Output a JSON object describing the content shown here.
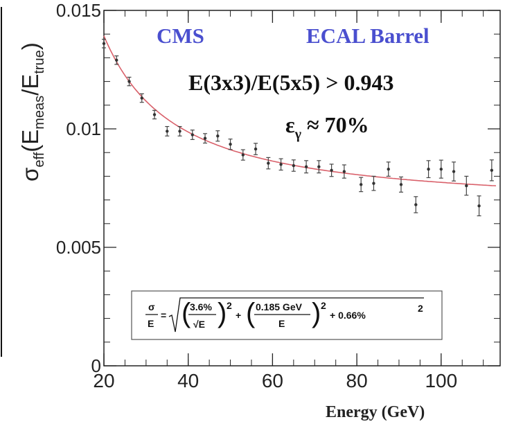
{
  "chart_data": {
    "type": "scatter",
    "annotations": {
      "experiment": "CMS",
      "detector": "ECAL Barrel",
      "cut": "E(3x3)/E(5x5) > 0.943",
      "efficiency_symbol": "ε",
      "efficiency_sub": "γ",
      "efficiency_value": " ≈ 70%"
    },
    "formula": {
      "lhs_num": "σ",
      "lhs_den": "E",
      "eq": "=",
      "stoch_num": "3.6%",
      "stoch_den": "√E",
      "noise_num": "0.185 GeV",
      "noise_den": "E",
      "square": "2",
      "tail": "+ 0.66%",
      "plus": "+"
    },
    "xlabel": "Energy (GeV)",
    "ylabel": {
      "prefix": "σ",
      "sub1": "eff",
      "open": "(E",
      "sub2": "meas",
      "slash": "/E",
      "sub3": "true",
      "close": ")"
    },
    "xlim": [
      20,
      114
    ],
    "ylim": [
      0,
      0.015
    ],
    "x_ticks": [
      {
        "value": 20,
        "label": "20"
      },
      {
        "value": 40,
        "label": "40"
      },
      {
        "value": 60,
        "label": "60"
      },
      {
        "value": 80,
        "label": "80"
      },
      {
        "value": 100,
        "label": "100"
      }
    ],
    "y_ticks": [
      {
        "value": 0,
        "label": "0"
      },
      {
        "value": 0.005,
        "label": "0.005"
      },
      {
        "value": 0.01,
        "label": "0.01"
      },
      {
        "value": 0.015,
        "label": "0.015"
      }
    ],
    "grid": false,
    "series": [
      {
        "x": [
          20.0,
          23.0,
          26.0,
          29.0,
          32.0,
          35.0,
          38.0,
          41.0,
          44.0,
          47.0,
          50.0,
          53.0,
          56.0,
          59.0,
          62.0,
          65.0,
          68.0,
          71.0,
          74.0,
          77.0,
          81.0,
          84.0,
          87.5,
          90.5,
          94.0,
          97.0,
          100.0,
          103.0,
          106.0,
          109.0,
          112.0
        ],
        "y": [
          0.0136,
          0.0129,
          0.012,
          0.0113,
          0.0106,
          0.0099,
          0.0099,
          0.00975,
          0.0096,
          0.0097,
          0.00935,
          0.0089,
          0.00915,
          0.00855,
          0.0085,
          0.00845,
          0.0084,
          0.0084,
          0.00825,
          0.0082,
          0.00765,
          0.0077,
          0.0083,
          0.00765,
          0.0068,
          0.0083,
          0.0083,
          0.0082,
          0.0076,
          0.00675,
          0.00825
        ],
        "yerr": [
          0.00018,
          0.00018,
          0.00018,
          0.00018,
          0.00018,
          0.0002,
          0.0002,
          0.0002,
          0.0002,
          0.00022,
          0.00022,
          0.00022,
          0.00024,
          0.00024,
          0.00024,
          0.00024,
          0.00026,
          0.00026,
          0.00026,
          0.00028,
          0.0003,
          0.0003,
          0.0003,
          0.00032,
          0.00034,
          0.00036,
          0.00038,
          0.0004,
          0.0004,
          0.00042,
          0.00044
        ]
      }
    ],
    "fit": {
      "function": "sqrt((a/sqrt(E))^2 + (b/E)^2 + c^2)",
      "a": 0.036,
      "b": 0.185,
      "c": 0.0066
    },
    "colors": {
      "fit_line": "#d9606a",
      "points": "#333333",
      "annotation_blue": "#4a4fcf"
    }
  }
}
